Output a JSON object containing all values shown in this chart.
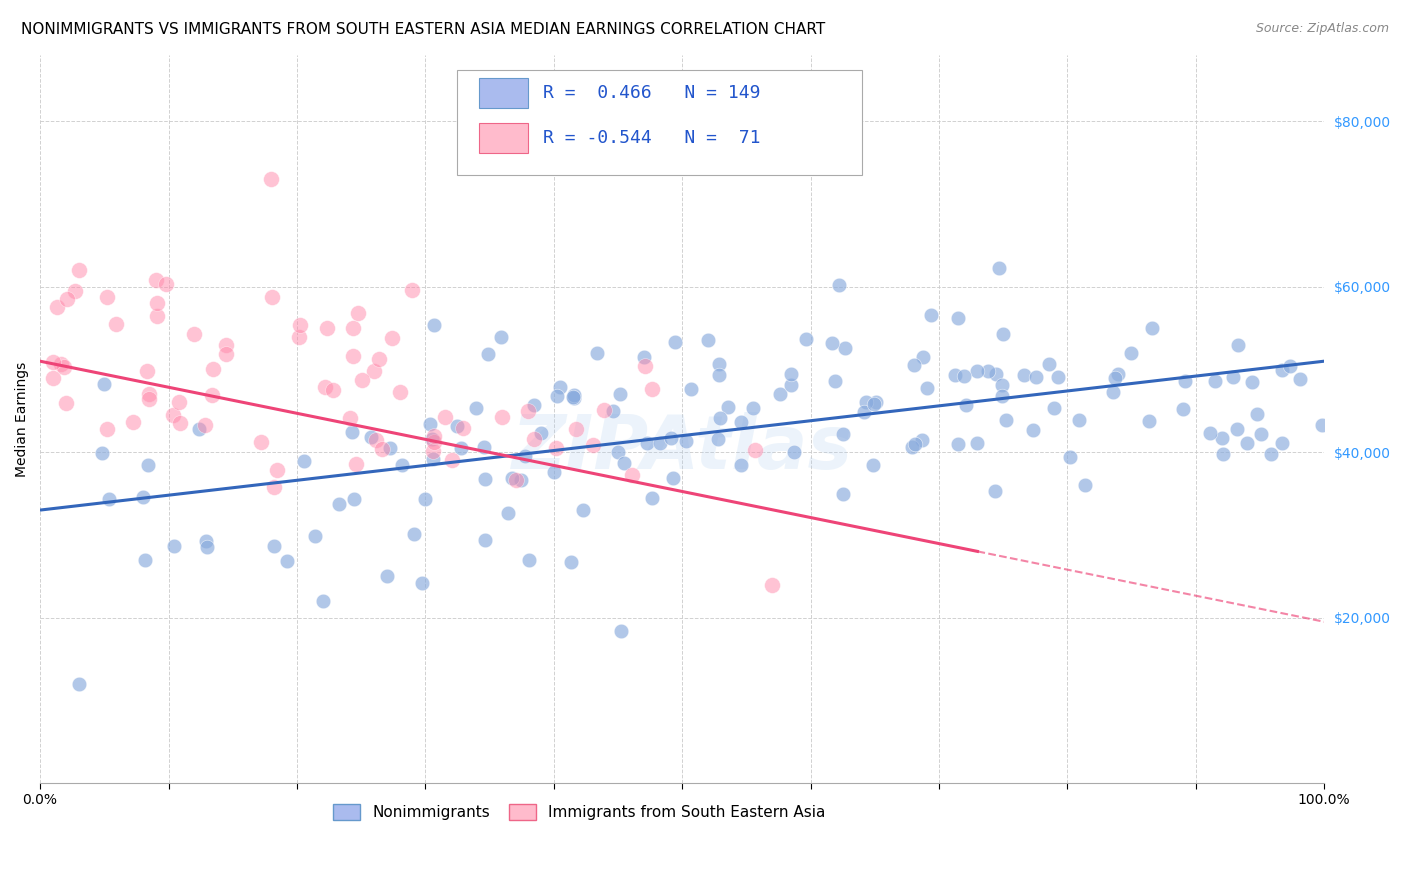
{
  "title": "NONIMMIGRANTS VS IMMIGRANTS FROM SOUTH EASTERN ASIA MEDIAN EARNINGS CORRELATION CHART",
  "source": "Source: ZipAtlas.com",
  "ylabel": "Median Earnings",
  "xlim": [
    0,
    1
  ],
  "ylim": [
    0,
    88000
  ],
  "yticks": [
    20000,
    40000,
    60000,
    80000
  ],
  "ytick_labels": [
    "$20,000",
    "$40,000",
    "$60,000",
    "$80,000"
  ],
  "blue_R": 0.466,
  "blue_N": 149,
  "pink_R": -0.544,
  "pink_N": 71,
  "blue_color": "#88aadd",
  "pink_color": "#ff88aa",
  "blue_line_color": "#3366bb",
  "pink_line_color": "#ee4477",
  "watermark": "ZIPAtlas",
  "title_fontsize": 11,
  "axis_label_fontsize": 10,
  "tick_fontsize": 10,
  "right_tick_color": "#3399ff",
  "background_color": "#ffffff",
  "grid_color": "#cccccc",
  "legend_box_color": "#dddddd",
  "legend_text_color": "#2255cc"
}
